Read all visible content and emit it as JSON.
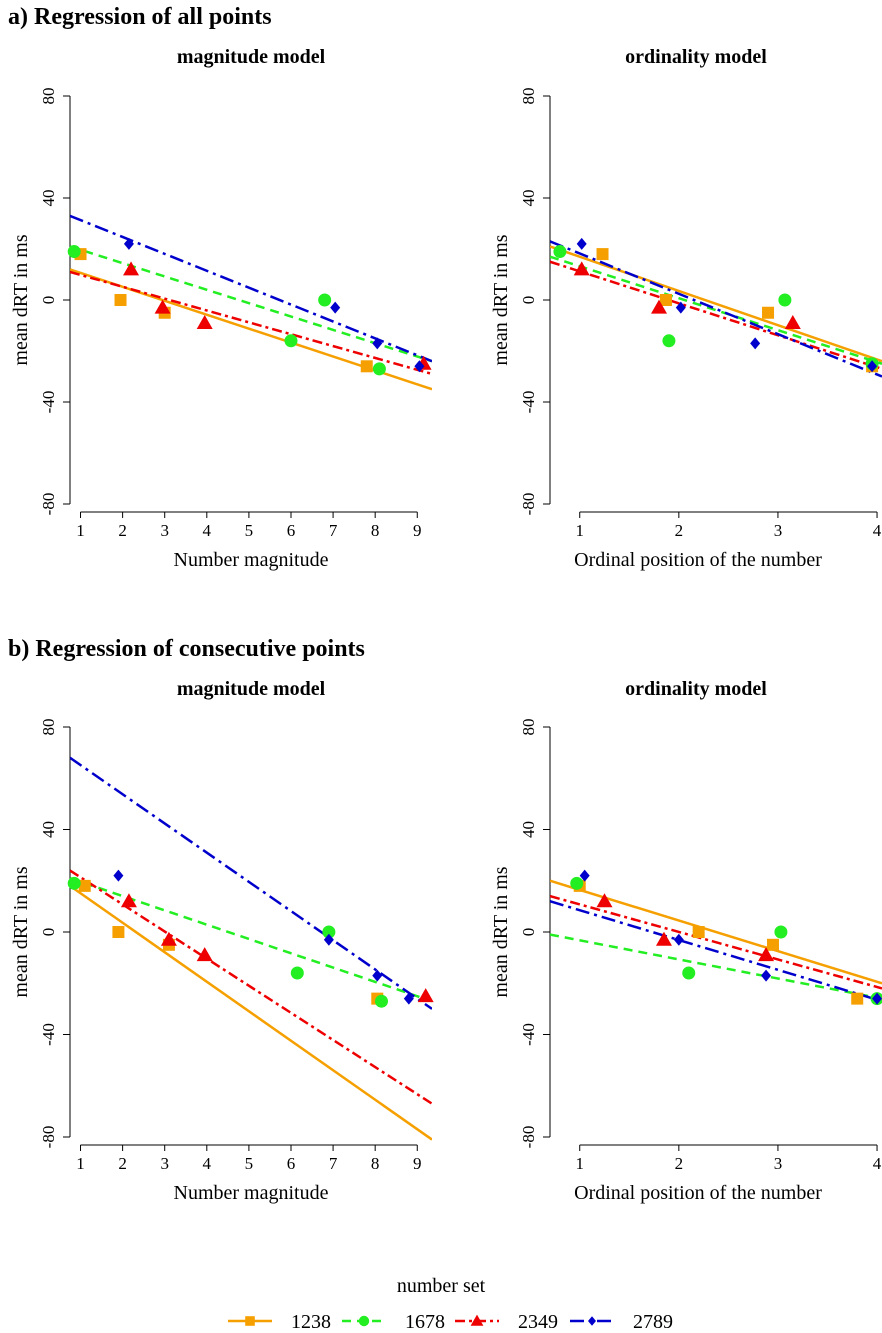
{
  "sections": [
    {
      "label": "a) Regression of all points"
    },
    {
      "label": "b) Regression of consecutive points"
    }
  ],
  "colors": {
    "1238": "#f5a000",
    "1678": "#22ee22",
    "2349": "#ee0000",
    "2789": "#0000cc"
  },
  "legend": {
    "title": "number set",
    "items": [
      {
        "name": "1238",
        "color": "#f5a000",
        "marker": "square",
        "dash": "solid"
      },
      {
        "name": "1678",
        "color": "#22ee22",
        "marker": "circle",
        "dash": "dashed"
      },
      {
        "name": "2349",
        "color": "#ee0000",
        "marker": "triangle",
        "dash": "dashdot"
      },
      {
        "name": "2789",
        "color": "#0000cc",
        "marker": "diamond",
        "dash": "longdash-dot"
      }
    ]
  },
  "chart_data": [
    {
      "type": "scatter",
      "section": "a",
      "title": "magnitude model",
      "xlabel": "Number magnitude",
      "ylabel": "mean dRT in ms",
      "xlim": [
        0.75,
        9.35
      ],
      "ylim": [
        -80,
        80
      ],
      "xticks": [
        1,
        2,
        3,
        4,
        5,
        6,
        7,
        8,
        9
      ],
      "yticks": [
        80,
        40,
        0,
        -40,
        -80
      ],
      "series": [
        {
          "name": "1238",
          "points": [
            [
              1,
              18
            ],
            [
              1.95,
              0
            ],
            [
              3,
              -5
            ],
            [
              7.8,
              -26
            ]
          ],
          "line": [
            [
              0.75,
              12
            ],
            [
              9.35,
              -35
            ]
          ]
        },
        {
          "name": "1678",
          "points": [
            [
              0.85,
              19
            ],
            [
              6,
              -16
            ],
            [
              6.8,
              0
            ],
            [
              8.1,
              -27
            ]
          ],
          "line": [
            [
              0.75,
              21
            ],
            [
              9.35,
              -24
            ]
          ]
        },
        {
          "name": "2349",
          "points": [
            [
              2.2,
              12
            ],
            [
              2.95,
              -3
            ],
            [
              3.95,
              -9
            ],
            [
              9.15,
              -25
            ]
          ],
          "line": [
            [
              0.75,
              11
            ],
            [
              9.35,
              -29
            ]
          ]
        },
        {
          "name": "2789",
          "points": [
            [
              2.15,
              22
            ],
            [
              7.05,
              -3
            ],
            [
              8.05,
              -17
            ],
            [
              9.05,
              -26
            ]
          ],
          "line": [
            [
              0.75,
              33
            ],
            [
              9.35,
              -24
            ]
          ]
        }
      ]
    },
    {
      "type": "scatter",
      "section": "a",
      "title": "ordinality model",
      "xlabel": "Ordinal position of the number",
      "ylabel": "mean dRT in ms",
      "xlim": [
        0.7,
        4.05
      ],
      "ylim": [
        -80,
        80
      ],
      "xticks": [
        1,
        2,
        3,
        4
      ],
      "yticks": [
        80,
        40,
        0,
        -40,
        -80
      ],
      "series": [
        {
          "name": "1238",
          "points": [
            [
              1.23,
              18
            ],
            [
              1.87,
              0
            ],
            [
              2.9,
              -5
            ],
            [
              3.95,
              -26
            ]
          ],
          "line": [
            [
              0.7,
              21
            ],
            [
              4.05,
              -24
            ]
          ]
        },
        {
          "name": "1678",
          "points": [
            [
              0.8,
              19
            ],
            [
              1.9,
              -16
            ],
            [
              3.07,
              0
            ],
            [
              3.95,
              -25
            ]
          ],
          "line": [
            [
              0.7,
              17
            ],
            [
              4.05,
              -25
            ]
          ]
        },
        {
          "name": "2349",
          "points": [
            [
              1.02,
              12
            ],
            [
              1.8,
              -3
            ],
            [
              3.15,
              -9
            ]
          ],
          "line": [
            [
              0.7,
              15
            ],
            [
              4.05,
              -27
            ]
          ]
        },
        {
          "name": "2789",
          "points": [
            [
              1.02,
              22
            ],
            [
              2.02,
              -3
            ],
            [
              2.77,
              -17
            ],
            [
              3.95,
              -26
            ]
          ],
          "line": [
            [
              0.7,
              23
            ],
            [
              4.05,
              -30
            ]
          ]
        }
      ]
    },
    {
      "type": "scatter",
      "section": "b",
      "title": "magnitude model",
      "xlabel": "Number magnitude",
      "ylabel": "mean dRT in ms",
      "xlim": [
        0.75,
        9.35
      ],
      "ylim": [
        -80,
        80
      ],
      "xticks": [
        1,
        2,
        3,
        4,
        5,
        6,
        7,
        8,
        9
      ],
      "yticks": [
        80,
        40,
        0,
        -40,
        -80
      ],
      "series": [
        {
          "name": "1238",
          "points": [
            [
              1.1,
              18
            ],
            [
              1.9,
              0
            ],
            [
              3.1,
              -5
            ],
            [
              8.05,
              -26
            ]
          ],
          "line": [
            [
              0.75,
              18
            ],
            [
              9.35,
              -81
            ]
          ]
        },
        {
          "name": "1678",
          "points": [
            [
              0.85,
              19
            ],
            [
              6.15,
              -16
            ],
            [
              6.9,
              0
            ],
            [
              8.15,
              -27
            ]
          ],
          "line": [
            [
              0.75,
              21
            ],
            [
              9.35,
              -27
            ]
          ]
        },
        {
          "name": "2349",
          "points": [
            [
              2.15,
              12
            ],
            [
              3.1,
              -3
            ],
            [
              3.95,
              -9
            ],
            [
              9.2,
              -25
            ]
          ],
          "line": [
            [
              0.75,
              24
            ],
            [
              9.35,
              -67
            ]
          ]
        },
        {
          "name": "2789",
          "points": [
            [
              1.9,
              22
            ],
            [
              6.9,
              -3
            ],
            [
              8.05,
              -17
            ],
            [
              8.8,
              -26
            ]
          ],
          "line": [
            [
              0.75,
              68
            ],
            [
              9.35,
              -30
            ]
          ]
        }
      ]
    },
    {
      "type": "scatter",
      "section": "b",
      "title": "ordinality model",
      "xlabel": "Ordinal position of the number",
      "ylabel": "mean dRT in ms",
      "xlim": [
        0.7,
        4.05
      ],
      "ylim": [
        -80,
        80
      ],
      "xticks": [
        1,
        2,
        3,
        4
      ],
      "yticks": [
        80,
        40,
        0,
        -40,
        -80
      ],
      "series": [
        {
          "name": "1238",
          "points": [
            [
              1.0,
              18
            ],
            [
              2.2,
              0
            ],
            [
              2.95,
              -5
            ],
            [
              3.8,
              -26
            ]
          ],
          "line": [
            [
              0.7,
              20
            ],
            [
              4.05,
              -20
            ]
          ]
        },
        {
          "name": "1678",
          "points": [
            [
              0.97,
              19
            ],
            [
              2.1,
              -16
            ],
            [
              3.03,
              0
            ],
            [
              4.0,
              -26
            ]
          ],
          "line": [
            [
              0.7,
              -1
            ],
            [
              4.05,
              -26
            ]
          ]
        },
        {
          "name": "2349",
          "points": [
            [
              1.25,
              12
            ],
            [
              1.85,
              -3
            ],
            [
              2.88,
              -9
            ]
          ],
          "line": [
            [
              0.7,
              14
            ],
            [
              4.05,
              -22
            ]
          ]
        },
        {
          "name": "2789",
          "points": [
            [
              1.05,
              22
            ],
            [
              2.0,
              -3
            ],
            [
              2.88,
              -17
            ],
            [
              4.0,
              -26
            ]
          ],
          "line": [
            [
              0.7,
              12
            ],
            [
              4.05,
              -27
            ]
          ]
        }
      ]
    }
  ]
}
